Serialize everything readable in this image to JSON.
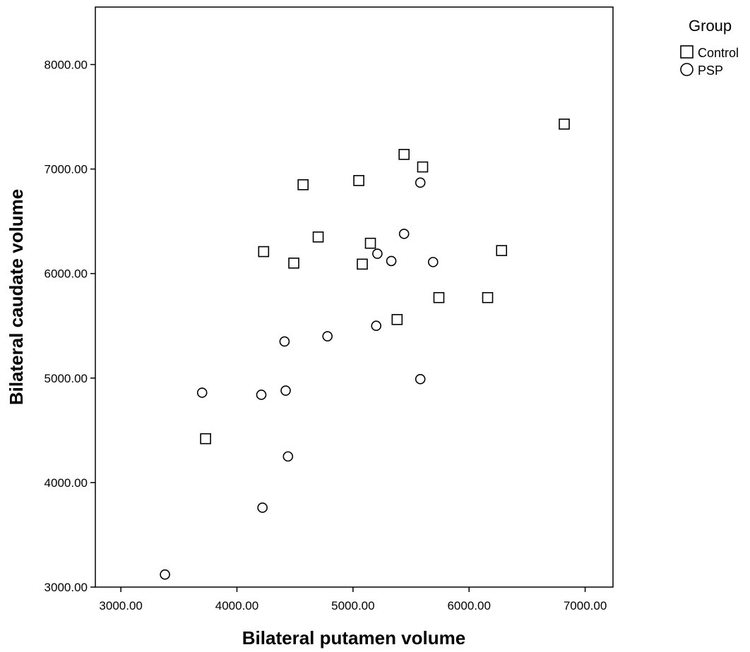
{
  "chart_data": {
    "type": "scatter",
    "title": "",
    "xlabel": "Bilateral putamen volume",
    "ylabel": "Bilateral caudate volume",
    "xlim": [
      2780,
      7240
    ],
    "ylim": [
      3000,
      8550
    ],
    "xticks": [
      "3000.00",
      "4000.00",
      "5000.00",
      "6000.00",
      "7000.00"
    ],
    "yticks": [
      "3000.00",
      "4000.00",
      "5000.00",
      "6000.00",
      "7000.00",
      "8000.00"
    ],
    "xtick_values": [
      3000,
      4000,
      5000,
      6000,
      7000
    ],
    "ytick_values": [
      3000,
      4000,
      5000,
      6000,
      7000,
      8000
    ],
    "grid": false,
    "legend": {
      "title": "Group",
      "placement": "top-right-outside",
      "entries": [
        {
          "label": "Control",
          "marker": "square"
        },
        {
          "label": "PSP",
          "marker": "circle"
        }
      ]
    },
    "series": [
      {
        "name": "Control",
        "marker": "square",
        "points": [
          {
            "x": 6820,
            "y": 7430
          },
          {
            "x": 5440,
            "y": 7140
          },
          {
            "x": 5600,
            "y": 7020
          },
          {
            "x": 5050,
            "y": 6890
          },
          {
            "x": 4570,
            "y": 6850
          },
          {
            "x": 4700,
            "y": 6350
          },
          {
            "x": 5150,
            "y": 6290
          },
          {
            "x": 4230,
            "y": 6210
          },
          {
            "x": 6280,
            "y": 6220
          },
          {
            "x": 4490,
            "y": 6100
          },
          {
            "x": 5080,
            "y": 6090
          },
          {
            "x": 5740,
            "y": 5770
          },
          {
            "x": 6160,
            "y": 5770
          },
          {
            "x": 5380,
            "y": 5560
          },
          {
            "x": 3730,
            "y": 4420
          }
        ]
      },
      {
        "name": "PSP",
        "marker": "circle",
        "points": [
          {
            "x": 5580,
            "y": 6870
          },
          {
            "x": 5440,
            "y": 6380
          },
          {
            "x": 5210,
            "y": 6190
          },
          {
            "x": 5330,
            "y": 6120
          },
          {
            "x": 5690,
            "y": 6110
          },
          {
            "x": 5200,
            "y": 5500
          },
          {
            "x": 4780,
            "y": 5400
          },
          {
            "x": 4410,
            "y": 5350
          },
          {
            "x": 5580,
            "y": 4990
          },
          {
            "x": 3700,
            "y": 4860
          },
          {
            "x": 4420,
            "y": 4880
          },
          {
            "x": 4210,
            "y": 4840
          },
          {
            "x": 4440,
            "y": 4250
          },
          {
            "x": 4220,
            "y": 3760
          },
          {
            "x": 3380,
            "y": 3120
          }
        ]
      }
    ]
  }
}
